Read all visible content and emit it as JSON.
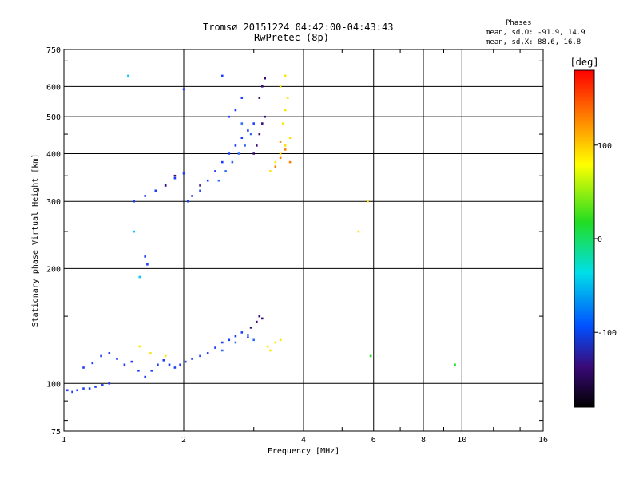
{
  "header": {
    "title": "Tromsø 20151224 04:42:00-04:43:43",
    "subtitle": "RwPretec (8p)"
  },
  "stats": {
    "heading": "Phases",
    "line_o": "mean, sd,O: -91.9, 14.9",
    "line_x": "mean, sd,X:  88.6, 16.8"
  },
  "chart_data": {
    "type": "scatter",
    "xlabel": "Frequency [MHz]",
    "ylabel": "Stationary phase Virtual Height [km]",
    "x_scale": "log",
    "y_scale": "log",
    "xlim": [
      1,
      16
    ],
    "ylim": [
      75,
      750
    ],
    "x_ticks": [
      1,
      2,
      4,
      6,
      8,
      10,
      16
    ],
    "x_tick_labels": [
      "1",
      "2",
      "4",
      "6",
      "8",
      "10",
      "16"
    ],
    "y_ticks": [
      75,
      100,
      200,
      300,
      400,
      500,
      600,
      750
    ],
    "y_tick_labels": [
      "75",
      "100",
      "200",
      "300",
      "400",
      "500",
      "600",
      "750"
    ],
    "grid": true,
    "colorbar": {
      "label": "[deg]",
      "range": [
        -180,
        180
      ],
      "ticks": [
        100,
        0,
        -100
      ],
      "tick_labels": [
        "100",
        "0",
        "-100"
      ]
    },
    "series": [
      {
        "color": "#1e3cff",
        "phase": -100,
        "points": [
          [
            1.02,
            96
          ],
          [
            1.05,
            95
          ],
          [
            1.08,
            96
          ],
          [
            1.12,
            97
          ],
          [
            1.16,
            97
          ],
          [
            1.2,
            98
          ],
          [
            1.25,
            99
          ],
          [
            1.3,
            100
          ],
          [
            1.12,
            110
          ],
          [
            1.18,
            113
          ],
          [
            1.24,
            118
          ],
          [
            1.3,
            120
          ],
          [
            1.36,
            116
          ],
          [
            1.42,
            112
          ],
          [
            1.48,
            114
          ],
          [
            1.54,
            108
          ],
          [
            1.6,
            104
          ],
          [
            1.66,
            108
          ],
          [
            1.72,
            112
          ],
          [
            1.78,
            115
          ],
          [
            1.84,
            112
          ],
          [
            1.9,
            110
          ],
          [
            1.96,
            112
          ],
          [
            2.02,
            114
          ],
          [
            2.1,
            116
          ],
          [
            2.2,
            118
          ],
          [
            2.3,
            120
          ],
          [
            2.4,
            124
          ],
          [
            2.5,
            128
          ],
          [
            2.6,
            130
          ],
          [
            2.7,
            133
          ],
          [
            2.8,
            136
          ],
          [
            2.9,
            132
          ],
          [
            1.5,
            300
          ],
          [
            1.6,
            310
          ],
          [
            1.7,
            320
          ],
          [
            1.8,
            330
          ],
          [
            1.9,
            345
          ],
          [
            2.0,
            355
          ],
          [
            2.05,
            300
          ],
          [
            2.1,
            310
          ],
          [
            2.2,
            320
          ],
          [
            2.3,
            340
          ],
          [
            2.4,
            360
          ],
          [
            2.5,
            380
          ],
          [
            2.6,
            400
          ],
          [
            2.7,
            420
          ],
          [
            2.8,
            440
          ],
          [
            2.9,
            460
          ],
          [
            3.0,
            480
          ],
          [
            2.6,
            500
          ],
          [
            2.7,
            520
          ],
          [
            2.8,
            560
          ],
          [
            2.5,
            640
          ],
          [
            2.0,
            590
          ],
          [
            1.6,
            215
          ],
          [
            1.62,
            205
          ]
        ]
      },
      {
        "color": "#2d6cf0",
        "phase": -90,
        "points": [
          [
            2.5,
            122
          ],
          [
            2.7,
            128
          ],
          [
            2.9,
            134
          ],
          [
            3.0,
            130
          ],
          [
            2.45,
            340
          ],
          [
            2.55,
            360
          ],
          [
            2.65,
            380
          ],
          [
            2.75,
            400
          ],
          [
            2.85,
            420
          ],
          [
            2.95,
            450
          ],
          [
            2.8,
            480
          ]
        ]
      },
      {
        "color": "#3a0a78",
        "phase": -140,
        "points": [
          [
            2.95,
            140
          ],
          [
            3.05,
            145
          ],
          [
            3.1,
            150
          ],
          [
            3.15,
            148
          ],
          [
            3.0,
            400
          ],
          [
            3.05,
            420
          ],
          [
            3.1,
            450
          ],
          [
            3.15,
            480
          ],
          [
            3.2,
            500
          ],
          [
            3.1,
            560
          ],
          [
            3.15,
            600
          ],
          [
            3.2,
            630
          ],
          [
            1.8,
            330
          ],
          [
            1.9,
            350
          ],
          [
            2.2,
            330
          ]
        ]
      },
      {
        "color": "#ffe500",
        "phase": 100,
        "points": [
          [
            3.25,
            125
          ],
          [
            3.3,
            122
          ],
          [
            3.4,
            128
          ],
          [
            3.5,
            130
          ],
          [
            3.3,
            360
          ],
          [
            3.4,
            380
          ],
          [
            3.5,
            400
          ],
          [
            3.6,
            420
          ],
          [
            3.7,
            440
          ],
          [
            3.55,
            480
          ],
          [
            3.6,
            520
          ],
          [
            3.65,
            560
          ],
          [
            3.5,
            600
          ],
          [
            3.6,
            640
          ],
          [
            1.55,
            125
          ],
          [
            1.65,
            120
          ],
          [
            1.8,
            118
          ],
          [
            5.5,
            250
          ],
          [
            5.8,
            300
          ]
        ]
      },
      {
        "color": "#ff8000",
        "phase": 140,
        "points": [
          [
            3.4,
            370
          ],
          [
            3.5,
            390
          ],
          [
            3.6,
            410
          ],
          [
            3.5,
            430
          ],
          [
            3.7,
            380
          ]
        ]
      },
      {
        "color": "#22dd22",
        "phase": 20,
        "points": [
          [
            5.9,
            118
          ],
          [
            9.6,
            112
          ]
        ]
      },
      {
        "color": "#00c8ff",
        "phase": -50,
        "points": [
          [
            1.45,
            640
          ],
          [
            1.55,
            190
          ],
          [
            1.5,
            250
          ]
        ]
      }
    ]
  }
}
